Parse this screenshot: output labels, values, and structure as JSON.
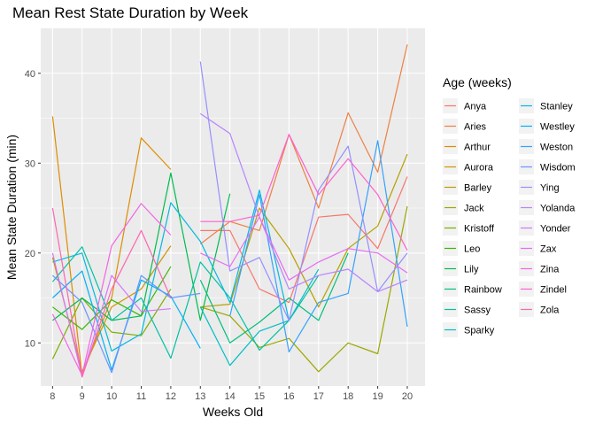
{
  "chart_data": {
    "type": "line",
    "title": "Mean Rest State Duration by Week",
    "xlabel": "Weeks Old",
    "ylabel": "Mean State Duration (min)",
    "xlim": [
      7.6,
      20.6
    ],
    "ylim": [
      5.2,
      45.0
    ],
    "x_ticks": [
      8,
      9,
      10,
      11,
      12,
      13,
      14,
      15,
      16,
      17,
      18,
      19,
      20
    ],
    "y_ticks": [
      10,
      20,
      30,
      40
    ],
    "grid": true,
    "legend_title": "Age (weeks)",
    "legend_placement": "right",
    "series": [
      {
        "name": "Anya",
        "color": "#F8766D",
        "points": [
          [
            13,
            22.5
          ],
          [
            14,
            22.5
          ],
          [
            15,
            16
          ],
          [
            16,
            14.5
          ],
          [
            17,
            24
          ],
          [
            18,
            24.3
          ],
          [
            19,
            20.5
          ],
          [
            20,
            28.5
          ]
        ]
      },
      {
        "name": "Aries",
        "color": "#EE8042",
        "points": [
          [
            13,
            21
          ],
          [
            14,
            23.5
          ],
          [
            15,
            22.5
          ],
          [
            16,
            33.2
          ],
          [
            17,
            25
          ],
          [
            18,
            35.6
          ],
          [
            19,
            29
          ],
          [
            20,
            43.2
          ]
        ]
      },
      {
        "name": "Arthur",
        "color": "#DE8C00",
        "points": [
          [
            8,
            35.2
          ],
          [
            9,
            6.4
          ],
          [
            10,
            15
          ],
          [
            11,
            32.8
          ],
          [
            12,
            29.3
          ]
        ]
      },
      {
        "name": "Aurora",
        "color": "#CD9600",
        "points": [
          [
            8,
            19.5
          ],
          [
            9,
            6.8
          ],
          [
            10,
            14
          ],
          [
            11,
            16
          ],
          [
            12,
            20.8
          ]
        ]
      },
      {
        "name": "Barley",
        "color": "#B79F00",
        "points": [
          [
            13,
            14
          ],
          [
            14,
            14.3
          ],
          [
            15,
            25
          ],
          [
            16,
            20.5
          ],
          [
            17,
            14
          ],
          [
            18,
            20.5
          ],
          [
            19,
            23
          ],
          [
            20,
            31
          ]
        ]
      },
      {
        "name": "Jack",
        "color": "#9CA700",
        "points": [
          [
            13,
            14
          ],
          [
            14,
            13
          ],
          [
            15,
            9.5
          ],
          [
            16,
            10.5
          ],
          [
            17,
            6.8
          ],
          [
            18,
            10
          ],
          [
            19,
            8.8
          ],
          [
            20,
            25.2
          ]
        ]
      },
      {
        "name": "Kristoff",
        "color": "#7CAE00",
        "points": [
          [
            8,
            8.2
          ],
          [
            9,
            15
          ],
          [
            10,
            11.2
          ],
          [
            11,
            10.8
          ],
          [
            12,
            16
          ]
        ]
      },
      {
        "name": "Leo",
        "color": "#39B600",
        "points": [
          [
            8,
            14
          ],
          [
            9,
            11.5
          ],
          [
            10,
            14.8
          ],
          [
            11,
            13
          ],
          [
            12,
            18.5
          ]
        ]
      },
      {
        "name": "Lily",
        "color": "#00BB4E",
        "points": [
          [
            8,
            12.5
          ],
          [
            9,
            15
          ],
          [
            10,
            12.5
          ],
          [
            11,
            13
          ],
          [
            12,
            28.9
          ],
          [
            13,
            12.5
          ],
          [
            14,
            26.6
          ]
        ]
      },
      {
        "name": "Rainbow",
        "color": "#00BF7D",
        "points": [
          [
            13,
            17
          ],
          [
            14,
            10
          ],
          [
            15,
            12.3
          ],
          [
            16,
            15
          ],
          [
            17,
            12.5
          ],
          [
            18,
            20
          ]
        ]
      },
      {
        "name": "Sassy",
        "color": "#00C1A3",
        "points": [
          [
            8,
            16.8
          ],
          [
            9,
            20.7
          ],
          [
            10,
            12.5
          ],
          [
            11,
            15
          ],
          [
            12,
            8.3
          ],
          [
            13,
            19
          ],
          [
            14,
            15
          ],
          [
            15,
            9.2
          ],
          [
            16,
            12.5
          ],
          [
            17,
            17.5
          ]
        ]
      },
      {
        "name": "Sparky",
        "color": "#00BFC4",
        "points": [
          [
            13,
            14
          ],
          [
            14,
            7.5
          ],
          [
            15,
            11.3
          ],
          [
            16,
            12.5
          ],
          [
            17,
            18.2
          ]
        ]
      },
      {
        "name": "Stanley",
        "color": "#00BAE0",
        "points": [
          [
            8,
            19
          ],
          [
            9,
            20
          ],
          [
            10,
            9.1
          ],
          [
            11,
            11
          ],
          [
            12,
            25.6
          ],
          [
            13,
            21.3
          ],
          [
            14,
            14.5
          ],
          [
            15,
            27
          ],
          [
            16,
            12.5
          ]
        ]
      },
      {
        "name": "Westley",
        "color": "#00B0F6",
        "points": [
          [
            8,
            15
          ],
          [
            9,
            18
          ],
          [
            10,
            7
          ],
          [
            11,
            17
          ],
          [
            12,
            15.2
          ],
          [
            13,
            9.4
          ]
        ]
      },
      {
        "name": "Weston",
        "color": "#35A2FF",
        "points": [
          [
            14,
            13
          ],
          [
            15,
            26.5
          ],
          [
            16,
            9
          ],
          [
            17,
            14.5
          ],
          [
            18,
            15.5
          ],
          [
            19,
            32.5
          ],
          [
            20,
            11.8
          ]
        ]
      },
      {
        "name": "Wisdom",
        "color": "#6895FF",
        "points": [
          [
            8,
            17.5
          ],
          [
            9,
            14.5
          ],
          [
            10,
            6.7
          ],
          [
            11,
            17.5
          ],
          [
            12,
            15
          ],
          [
            13,
            15.5
          ]
        ]
      },
      {
        "name": "Ying",
        "color": "#9590FF",
        "points": [
          [
            13,
            41.3
          ],
          [
            14,
            18
          ],
          [
            15,
            19.5
          ],
          [
            16,
            12.5
          ],
          [
            17,
            27
          ],
          [
            18,
            31.9
          ],
          [
            19,
            15.7
          ],
          [
            20,
            20
          ]
        ]
      },
      {
        "name": "Yolanda",
        "color": "#B983FF",
        "points": [
          [
            13,
            35.5
          ],
          [
            14,
            33.3
          ],
          [
            15,
            24
          ],
          [
            16,
            16
          ],
          [
            17,
            17.5
          ],
          [
            18,
            18.2
          ],
          [
            19,
            15.7
          ],
          [
            20,
            17
          ]
        ]
      },
      {
        "name": "Yonder",
        "color": "#D575FE",
        "points": [
          [
            8,
            20
          ],
          [
            9,
            6.2
          ],
          [
            10,
            17.5
          ],
          [
            11,
            13.5
          ],
          [
            12,
            13.8
          ]
        ]
      },
      {
        "name": "Zax",
        "color": "#E76BF3",
        "points": [
          [
            13,
            20
          ],
          [
            14,
            18.5
          ],
          [
            15,
            24
          ],
          [
            16,
            17
          ],
          [
            17,
            19
          ],
          [
            18,
            20.5
          ],
          [
            19,
            20
          ],
          [
            20,
            17.8
          ]
        ]
      },
      {
        "name": "Zina",
        "color": "#F564E3",
        "points": [
          [
            8,
            13.2
          ],
          [
            9,
            6.4
          ],
          [
            10,
            20.8
          ],
          [
            11,
            25.5
          ],
          [
            12,
            22
          ]
        ]
      },
      {
        "name": "Zindel",
        "color": "#FD61D1",
        "points": [
          [
            13,
            23.5
          ],
          [
            14,
            23.5
          ],
          [
            15,
            24.2
          ],
          [
            16,
            33.2
          ],
          [
            17,
            26.5
          ],
          [
            18,
            30.5
          ],
          [
            19,
            26.5
          ],
          [
            20,
            20.3
          ]
        ]
      },
      {
        "name": "Zola",
        "color": "#FF64B0",
        "points": [
          [
            8,
            25
          ],
          [
            9,
            6.2
          ],
          [
            10,
            16
          ],
          [
            11,
            22.5
          ],
          [
            12,
            15
          ]
        ]
      }
    ]
  }
}
